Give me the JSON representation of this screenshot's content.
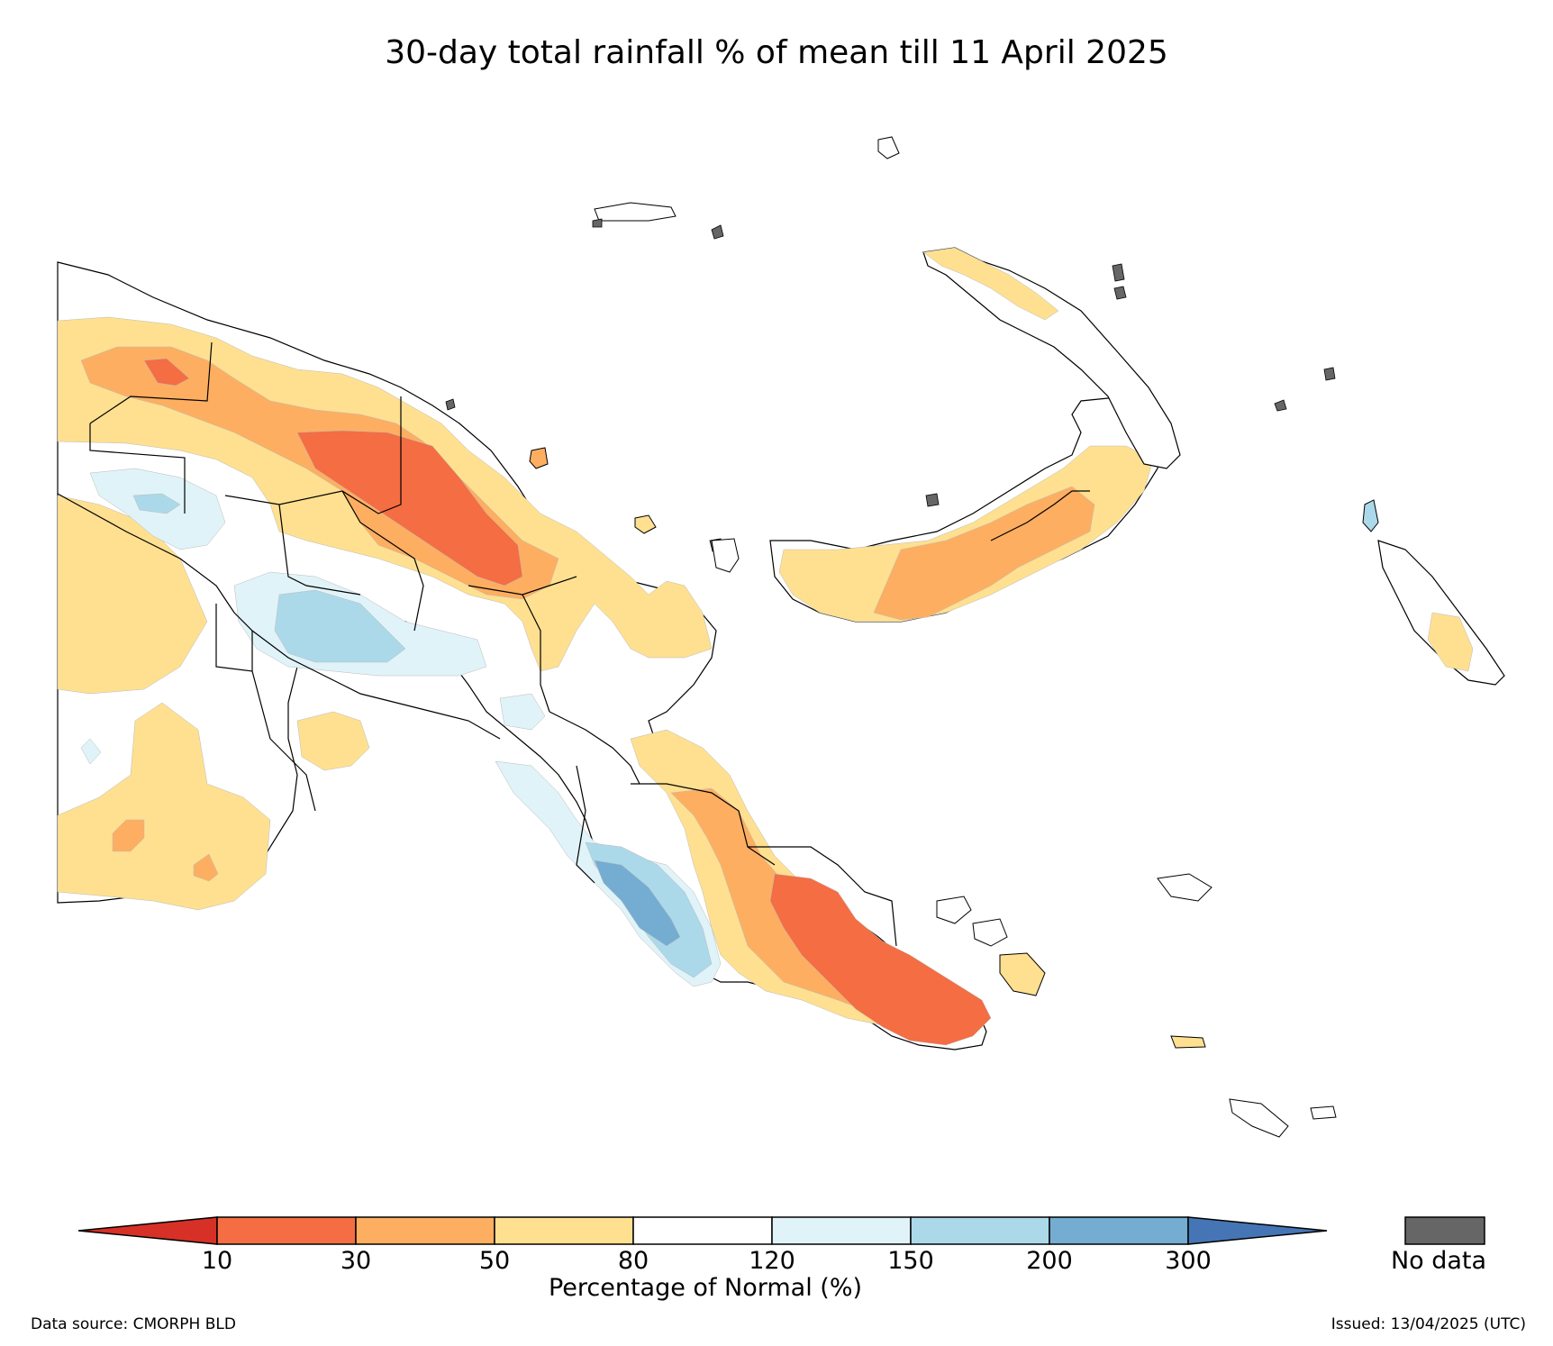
{
  "title": "30-day total rainfall % of mean till 11 April 2025",
  "colorbar": {
    "label": "Percentage of Normal (%)",
    "ticks": [
      "10",
      "30",
      "50",
      "80",
      "120",
      "150",
      "200",
      "300"
    ],
    "bins": [
      {
        "range": "<10",
        "color": "#d73027"
      },
      {
        "range": "10-30",
        "color": "#f46d43"
      },
      {
        "range": "30-50",
        "color": "#fdae61"
      },
      {
        "range": "50-80",
        "color": "#fee090"
      },
      {
        "range": "80-120",
        "color": "#ffffff"
      },
      {
        "range": "120-150",
        "color": "#e0f3f8"
      },
      {
        "range": "150-200",
        "color": "#abd9e9"
      },
      {
        "range": "200-300",
        "color": "#74add1"
      },
      {
        "range": ">300",
        "color": "#4575b4"
      }
    ],
    "no_data_label": "No data",
    "no_data_color": "#666666"
  },
  "footer": {
    "data_source": "Data source: CMORPH BLD",
    "issued": "Issued: 13/04/2025 (UTC)"
  }
}
